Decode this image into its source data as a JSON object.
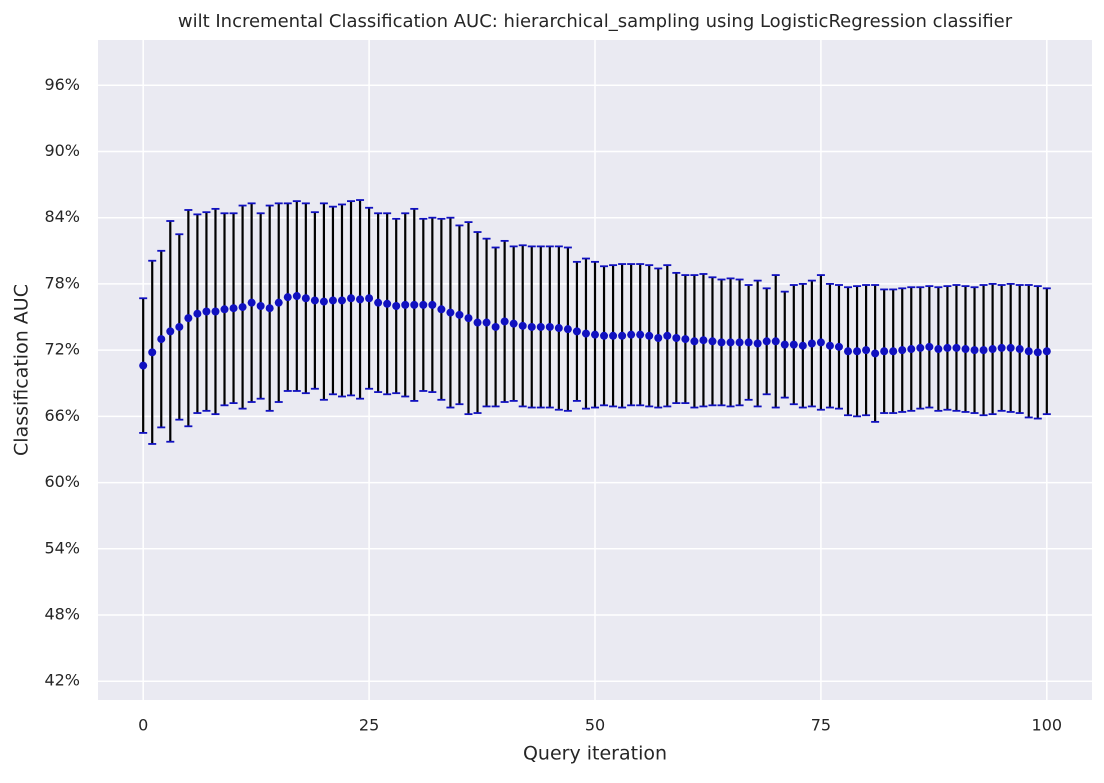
{
  "chart_data": {
    "type": "errorbar",
    "title": "wilt Incremental Classification AUC: hierarchical_sampling using LogisticRegression classifier",
    "xlabel": "Query iteration",
    "ylabel": "Classification AUC",
    "x": [
      0,
      1,
      2,
      3,
      4,
      5,
      6,
      7,
      8,
      9,
      10,
      11,
      12,
      13,
      14,
      15,
      16,
      17,
      18,
      19,
      20,
      21,
      22,
      23,
      24,
      25,
      26,
      27,
      28,
      29,
      30,
      31,
      32,
      33,
      34,
      35,
      36,
      37,
      38,
      39,
      40,
      41,
      42,
      43,
      44,
      45,
      46,
      47,
      48,
      49,
      50,
      51,
      52,
      53,
      54,
      55,
      56,
      57,
      58,
      59,
      60,
      61,
      62,
      63,
      64,
      65,
      66,
      67,
      68,
      69,
      70,
      71,
      72,
      73,
      74,
      75,
      76,
      77,
      78,
      79,
      80,
      81,
      82,
      83,
      84,
      85,
      86,
      87,
      88,
      89,
      90,
      91,
      92,
      93,
      94,
      95,
      96,
      97,
      98,
      99,
      100
    ],
    "values": [
      70.6,
      71.8,
      73.0,
      73.7,
      74.1,
      74.9,
      75.3,
      75.5,
      75.5,
      75.7,
      75.8,
      75.9,
      76.3,
      76.0,
      75.8,
      76.3,
      76.8,
      76.9,
      76.7,
      76.5,
      76.4,
      76.5,
      76.5,
      76.7,
      76.6,
      76.7,
      76.3,
      76.2,
      76.0,
      76.1,
      76.1,
      76.1,
      76.1,
      75.7,
      75.4,
      75.2,
      74.9,
      74.5,
      74.5,
      74.1,
      74.6,
      74.4,
      74.2,
      74.1,
      74.1,
      74.1,
      74.0,
      73.9,
      73.7,
      73.5,
      73.4,
      73.3,
      73.3,
      73.3,
      73.4,
      73.4,
      73.3,
      73.1,
      73.3,
      73.1,
      73.0,
      72.8,
      72.9,
      72.8,
      72.7,
      72.7,
      72.7,
      72.7,
      72.6,
      72.8,
      72.8,
      72.5,
      72.5,
      72.4,
      72.6,
      72.7,
      72.4,
      72.3,
      71.9,
      71.9,
      72.0,
      71.7,
      71.9,
      71.9,
      72.0,
      72.1,
      72.2,
      72.3,
      72.1,
      72.2,
      72.2,
      72.1,
      72.0,
      72.0,
      72.1,
      72.2,
      72.2,
      72.1,
      71.9,
      71.8,
      71.9
    ],
    "errors": [
      6.1,
      8.3,
      8.0,
      10.0,
      8.4,
      9.8,
      9.0,
      9.0,
      9.3,
      8.7,
      8.6,
      9.2,
      9.0,
      8.4,
      9.3,
      9.0,
      8.5,
      8.6,
      8.6,
      8.0,
      8.9,
      8.5,
      8.7,
      8.8,
      9.0,
      8.2,
      8.1,
      8.2,
      7.9,
      8.3,
      8.7,
      7.8,
      7.9,
      8.2,
      8.6,
      8.1,
      8.7,
      8.2,
      7.6,
      7.2,
      7.3,
      7.0,
      7.3,
      7.3,
      7.3,
      7.3,
      7.4,
      7.4,
      6.3,
      6.8,
      6.6,
      6.3,
      6.4,
      6.5,
      6.4,
      6.4,
      6.4,
      6.3,
      6.4,
      5.9,
      5.8,
      6.0,
      6.0,
      5.8,
      5.7,
      5.8,
      5.7,
      5.2,
      5.7,
      4.8,
      6.0,
      4.8,
      5.4,
      5.6,
      5.7,
      6.1,
      5.6,
      5.6,
      5.8,
      5.9,
      5.9,
      6.2,
      5.6,
      5.6,
      5.6,
      5.6,
      5.5,
      5.5,
      5.6,
      5.6,
      5.7,
      5.7,
      5.7,
      5.9,
      5.9,
      5.7,
      5.8,
      5.8,
      6.0,
      6.0,
      5.7
    ],
    "color": "#1010c0",
    "errorbar_color": "#000000",
    "cap_color": "#1010c0",
    "xlim": [
      -5,
      105
    ],
    "xticks": [
      0,
      25,
      50,
      75,
      100
    ],
    "ylim": [
      40.3,
      100.1
    ],
    "yticks": [
      {
        "value": 42,
        "label": "42%"
      },
      {
        "value": 48,
        "label": "48%"
      },
      {
        "value": 54,
        "label": "54%"
      },
      {
        "value": 60,
        "label": "60%"
      },
      {
        "value": 66,
        "label": "66%"
      },
      {
        "value": 72,
        "label": "72%"
      },
      {
        "value": 78,
        "label": "78%"
      },
      {
        "value": 84,
        "label": "84%"
      },
      {
        "value": 90,
        "label": "90%"
      },
      {
        "value": 96,
        "label": "96%"
      }
    ],
    "grid": true
  }
}
